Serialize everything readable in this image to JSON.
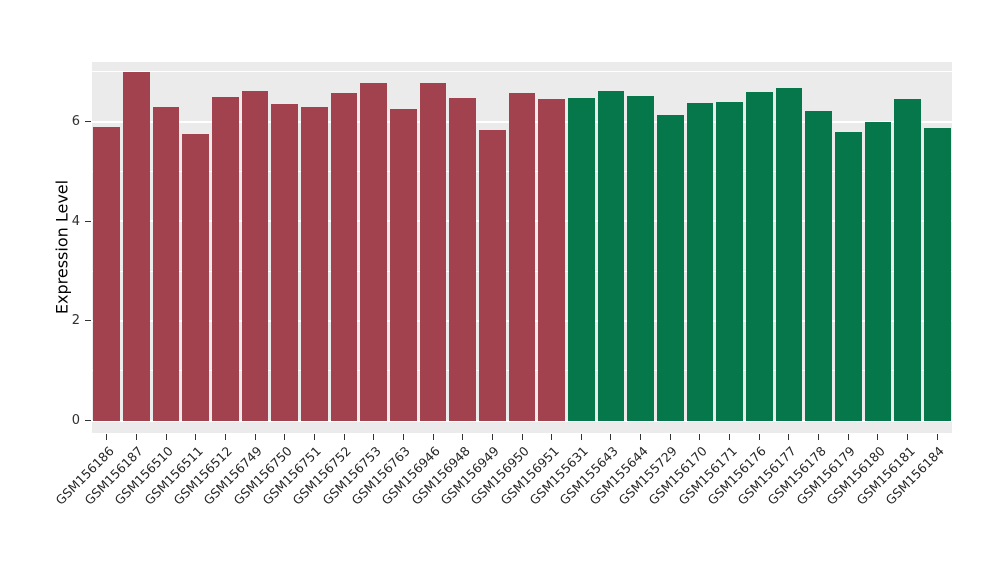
{
  "chart_data": {
    "type": "bar",
    "title": "",
    "xlabel": "",
    "ylabel": "Expression Level",
    "ylim": [
      0,
      7.2
    ],
    "yticks": [
      0,
      2,
      4,
      6
    ],
    "yticks_minor": [
      1,
      3,
      5,
      7
    ],
    "legend": "none",
    "panel_background": "#EBEBEB",
    "grid_color": "#FFFFFF",
    "groups": {
      "group1": {
        "color": "#A3424F"
      },
      "group2": {
        "color": "#06764B"
      }
    },
    "bars": [
      {
        "label": "GSM156186",
        "value": 5.9,
        "group": "group1"
      },
      {
        "label": "GSM156187",
        "value": 7.0,
        "group": "group1"
      },
      {
        "label": "GSM156510",
        "value": 6.3,
        "group": "group1"
      },
      {
        "label": "GSM156511",
        "value": 5.75,
        "group": "group1"
      },
      {
        "label": "GSM156512",
        "value": 6.5,
        "group": "group1"
      },
      {
        "label": "GSM156749",
        "value": 6.62,
        "group": "group1"
      },
      {
        "label": "GSM156750",
        "value": 6.35,
        "group": "group1"
      },
      {
        "label": "GSM156751",
        "value": 6.3,
        "group": "group1"
      },
      {
        "label": "GSM156752",
        "value": 6.57,
        "group": "group1"
      },
      {
        "label": "GSM156753",
        "value": 6.78,
        "group": "group1"
      },
      {
        "label": "GSM156763",
        "value": 6.25,
        "group": "group1"
      },
      {
        "label": "GSM156946",
        "value": 6.78,
        "group": "group1"
      },
      {
        "label": "GSM156948",
        "value": 6.47,
        "group": "group1"
      },
      {
        "label": "GSM156949",
        "value": 5.83,
        "group": "group1"
      },
      {
        "label": "GSM156950",
        "value": 6.58,
        "group": "group1"
      },
      {
        "label": "GSM156951",
        "value": 6.45,
        "group": "group1"
      },
      {
        "label": "GSM155631",
        "value": 6.47,
        "group": "group2"
      },
      {
        "label": "GSM155643",
        "value": 6.62,
        "group": "group2"
      },
      {
        "label": "GSM155644",
        "value": 6.52,
        "group": "group2"
      },
      {
        "label": "GSM155729",
        "value": 6.13,
        "group": "group2"
      },
      {
        "label": "GSM156170",
        "value": 6.38,
        "group": "group2"
      },
      {
        "label": "GSM156171",
        "value": 6.4,
        "group": "group2"
      },
      {
        "label": "GSM156176",
        "value": 6.6,
        "group": "group2"
      },
      {
        "label": "GSM156177",
        "value": 6.68,
        "group": "group2"
      },
      {
        "label": "GSM156178",
        "value": 6.22,
        "group": "group2"
      },
      {
        "label": "GSM156179",
        "value": 5.8,
        "group": "group2"
      },
      {
        "label": "GSM156180",
        "value": 6.0,
        "group": "group2"
      },
      {
        "label": "GSM156181",
        "value": 6.45,
        "group": "group2"
      },
      {
        "label": "GSM156184",
        "value": 5.87,
        "group": "group2"
      }
    ]
  }
}
